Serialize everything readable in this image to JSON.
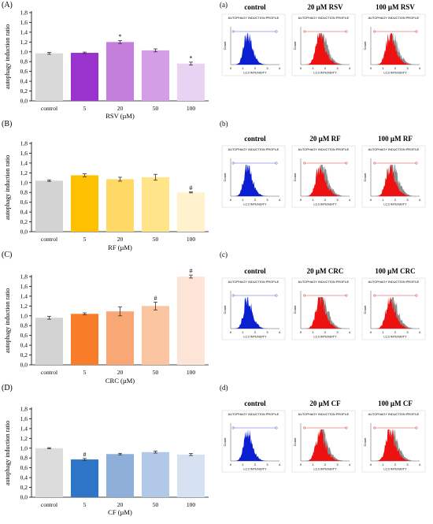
{
  "axis_shared": {
    "ylabel": "autophagy  induction  ratio",
    "ylim": [
      0,
      1.8
    ],
    "yticks": [
      "0,0",
      "0,2",
      "0,4",
      "0,6",
      "0,8",
      "1,0",
      "1,2",
      "1,4",
      "1,6",
      "1,8"
    ],
    "categories": [
      "control",
      "5",
      "20",
      "50",
      "100"
    ]
  },
  "histogram_labels": {
    "title": "AUTOPHAGY INDUCTION PROFILE",
    "xlabel": "LC3 INTENSITY",
    "ylabel": "Count",
    "xticks": [
      "0",
      "1",
      "2",
      "3",
      "4"
    ]
  },
  "chart_data": [
    {
      "type": "bar",
      "panel": "(A)",
      "xlabel": "RSV (µM)",
      "categories": [
        "control",
        "5",
        "20",
        "50",
        "100"
      ],
      "values": [
        0.97,
        0.98,
        1.2,
        1.03,
        0.76
      ],
      "errors": [
        0.02,
        0.015,
        0.03,
        0.03,
        0.03
      ],
      "marks": [
        "",
        "",
        "*",
        "",
        "*"
      ],
      "colors": [
        "#d9d9d9",
        "#9a32cd",
        "#c47fdc",
        "#d39ee6",
        "#e9d3f3"
      ],
      "ylim": [
        0,
        1.8
      ]
    },
    {
      "type": "bar",
      "panel": "(B)",
      "xlabel": "RF (µM)",
      "categories": [
        "control",
        "5",
        "20",
        "50",
        "100"
      ],
      "values": [
        1.04,
        1.15,
        1.07,
        1.11,
        0.8
      ],
      "errors": [
        0.015,
        0.03,
        0.04,
        0.06,
        0.01
      ],
      "marks": [
        "",
        "",
        "",
        "",
        "#"
      ],
      "colors": [
        "#d3d3d3",
        "#ffc000",
        "#ffd966",
        "#ffe48a",
        "#fff2cc"
      ],
      "ylim": [
        0,
        1.8
      ]
    },
    {
      "type": "bar",
      "panel": "(C)",
      "xlabel": "CRC (µM)",
      "categories": [
        "control",
        "5",
        "20",
        "50",
        "100"
      ],
      "values": [
        0.96,
        1.04,
        1.09,
        1.2,
        1.8
      ],
      "errors": [
        0.03,
        0.02,
        0.09,
        0.08,
        0.03
      ],
      "marks": [
        "",
        "",
        "",
        "#",
        "#"
      ],
      "colors": [
        "#d3d3d3",
        "#f97d28",
        "#f9a875",
        "#fbc5a2",
        "#fce4d6"
      ],
      "ylim": [
        0,
        1.8
      ]
    },
    {
      "type": "bar",
      "panel": "(D)",
      "xlabel": "CF (µM)",
      "categories": [
        "control",
        "5",
        "20",
        "50",
        "100"
      ],
      "values": [
        1.0,
        0.77,
        0.88,
        0.92,
        0.87
      ],
      "errors": [
        0.01,
        0.02,
        0.015,
        0.02,
        0.02
      ],
      "marks": [
        "",
        "#",
        "",
        "",
        ""
      ],
      "colors": [
        "#dcdcdc",
        "#2e75c7",
        "#8eafd8",
        "#b1c9e6",
        "#d6e2f2"
      ],
      "ylim": [
        0,
        1.8
      ]
    }
  ],
  "histograms": [
    {
      "panel": "(a)",
      "labels": [
        "control",
        "20 µM RSV",
        "100 µM RSV"
      ]
    },
    {
      "panel": "(b)",
      "labels": [
        "control",
        "20 µM RF",
        "100 µM RF"
      ]
    },
    {
      "panel": "(c)",
      "labels": [
        "control",
        "20 µM CRC",
        "100 µM CRC"
      ]
    },
    {
      "panel": "(d)",
      "labels": [
        "control",
        "20 µM CF",
        "100 µM CF"
      ]
    }
  ],
  "colors": {
    "control_histogram": "#0a1ed2",
    "treated_histogram": "#ee1111",
    "overlay_histogram": "#8c8c8c",
    "control_gate": "#5060d0",
    "treated_gate": "#d04040"
  }
}
